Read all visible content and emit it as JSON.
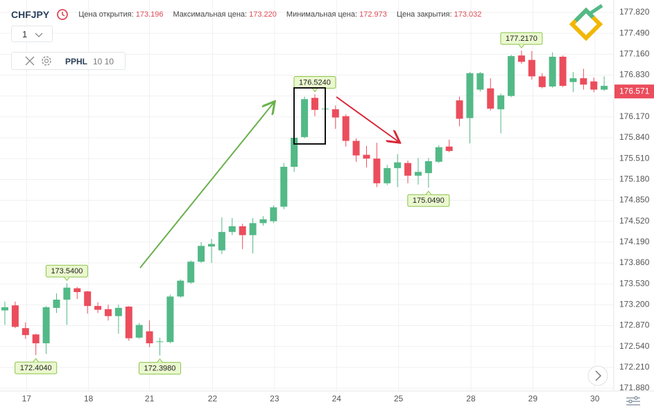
{
  "header": {
    "symbol": "CHFJPY",
    "fields": [
      {
        "label": "Цена открытия:",
        "value": "173.196"
      },
      {
        "label": "Максимальная цена:",
        "value": "173.220"
      },
      {
        "label": "Минимальная цена:",
        "value": "172.973"
      },
      {
        "label": "Цена закрытия:",
        "value": "173.032"
      }
    ]
  },
  "controls": {
    "interval": "1",
    "indicator": "PPHL",
    "params": "10 10"
  },
  "chart_data": {
    "type": "candlestick",
    "open": [
      173.11,
      173.19,
      172.83,
      172.73,
      172.59,
      173.15,
      173.28,
      173.46,
      173.41,
      173.18,
      173.13,
      173.02,
      173.17,
      172.68,
      172.78,
      172.61,
      172.61,
      173.33,
      173.55,
      173.88,
      174.12,
      174.06,
      174.35,
      174.44,
      174.3,
      174.49,
      174.52,
      174.75,
      175.38,
      175.85,
      176.47,
      176.29,
      176.29,
      176.18,
      175.79,
      175.57,
      175.51,
      175.12,
      175.36,
      175.44,
      175.24,
      175.28,
      175.46,
      175.7,
      176.43,
      176.15,
      176.6,
      176.62,
      176.29,
      176.5,
      177.14,
      177.07,
      176.81,
      176.65,
      177.12,
      176.72,
      176.78,
      176.73,
      176.6
    ],
    "high": [
      173.25,
      173.25,
      172.92,
      172.74,
      173.18,
      173.38,
      173.54,
      173.48,
      173.42,
      173.24,
      173.2,
      173.2,
      173.18,
      172.91,
      172.95,
      172.68,
      173.36,
      173.6,
      173.9,
      174.19,
      174.24,
      174.58,
      174.57,
      174.48,
      174.57,
      174.6,
      174.77,
      175.44,
      175.88,
      176.49,
      176.524,
      176.31,
      176.35,
      176.21,
      175.83,
      175.71,
      175.76,
      175.41,
      175.58,
      175.48,
      175.52,
      175.52,
      175.72,
      175.81,
      176.49,
      176.88,
      176.88,
      176.78,
      176.54,
      177.15,
      177.217,
      177.21,
      176.86,
      177.19,
      177.14,
      176.88,
      176.93,
      176.79,
      176.81
    ],
    "low": [
      172.88,
      172.83,
      172.66,
      172.404,
      172.42,
      173.07,
      172.88,
      173.29,
      173.06,
      173.07,
      172.95,
      172.74,
      172.63,
      172.66,
      172.53,
      172.398,
      172.59,
      173.31,
      173.53,
      173.86,
      173.86,
      174.0,
      174.3,
      174.08,
      174.01,
      174.45,
      174.49,
      174.71,
      175.3,
      175.83,
      176.18,
      176.27,
      175.98,
      175.7,
      175.46,
      175.37,
      175.06,
      175.09,
      175.06,
      175.12,
      175.1,
      175.049,
      175.44,
      175.61,
      176.02,
      175.75,
      176.57,
      176.27,
      175.91,
      176.48,
      177.01,
      176.76,
      176.62,
      176.63,
      176.64,
      176.56,
      176.6,
      176.56,
      176.58
    ],
    "close": [
      173.16,
      172.85,
      172.72,
      172.59,
      173.16,
      173.28,
      173.47,
      173.4,
      173.18,
      173.12,
      173.02,
      173.15,
      172.67,
      172.88,
      172.59,
      172.62,
      173.33,
      173.58,
      173.88,
      174.13,
      174.16,
      174.35,
      174.44,
      174.3,
      174.49,
      174.55,
      174.74,
      175.38,
      175.84,
      176.45,
      176.28,
      176.3,
      176.16,
      175.79,
      175.56,
      175.51,
      175.12,
      175.36,
      175.45,
      175.24,
      175.3,
      175.47,
      175.69,
      175.63,
      176.14,
      176.86,
      176.86,
      176.3,
      176.51,
      177.13,
      177.04,
      176.81,
      176.64,
      177.12,
      176.66,
      176.78,
      176.68,
      176.6,
      176.66
    ],
    "up_color": "#53b987",
    "down_color": "#eb4d5c",
    "annotations": [
      {
        "index": 3,
        "value": 172.404,
        "label": "172.4040"
      },
      {
        "index": 6,
        "value": 173.54,
        "label": "173.5400"
      },
      {
        "index": 15,
        "value": 172.398,
        "label": "172.3980"
      },
      {
        "index": 30,
        "value": 176.524,
        "label": "176.5240"
      },
      {
        "index": 41,
        "value": 175.049,
        "label": "175.0490"
      },
      {
        "index": 50,
        "value": 177.217,
        "label": "177.2170"
      }
    ],
    "last_price": 176.571,
    "xlim": [
      -0.47,
      58.93
    ],
    "xticks": [
      {
        "value": 2.1,
        "label": "17"
      },
      {
        "value": 8.1,
        "label": "18"
      },
      {
        "value": 14,
        "label": "21"
      },
      {
        "value": 20.1,
        "label": "22"
      },
      {
        "value": 26.1,
        "label": "23"
      },
      {
        "value": 32.1,
        "label": "24"
      },
      {
        "value": 38.1,
        "label": "25"
      },
      {
        "value": 45.1,
        "label": "28"
      },
      {
        "value": 51.1,
        "label": "29"
      },
      {
        "value": 57.1,
        "label": "30"
      }
    ],
    "ylim": [
      171.836,
      178.017
    ],
    "yticks": [
      {
        "value": 177.82,
        "label": "177.820"
      },
      {
        "value": 177.49,
        "label": "177.490"
      },
      {
        "value": 177.16,
        "label": "177.160"
      },
      {
        "value": 176.83,
        "label": "176.830"
      },
      {
        "value": 176.5,
        "label": "176.500"
      },
      {
        "value": 176.17,
        "label": "176.170"
      },
      {
        "value": 175.84,
        "label": "175.840"
      },
      {
        "value": 175.51,
        "label": "175.510"
      },
      {
        "value": 175.18,
        "label": "175.180"
      },
      {
        "value": 174.85,
        "label": "174.850"
      },
      {
        "value": 174.52,
        "label": "174.520"
      },
      {
        "value": 174.19,
        "label": "174.190"
      },
      {
        "value": 173.86,
        "label": "173.860"
      },
      {
        "value": 173.53,
        "label": "173.530"
      },
      {
        "value": 173.2,
        "label": "173.200"
      },
      {
        "value": 172.87,
        "label": "172.870"
      },
      {
        "value": 172.54,
        "label": "172.540"
      },
      {
        "value": 172.21,
        "label": "172.210"
      },
      {
        "value": 171.88,
        "label": "171.880"
      }
    ],
    "grid": true
  }
}
